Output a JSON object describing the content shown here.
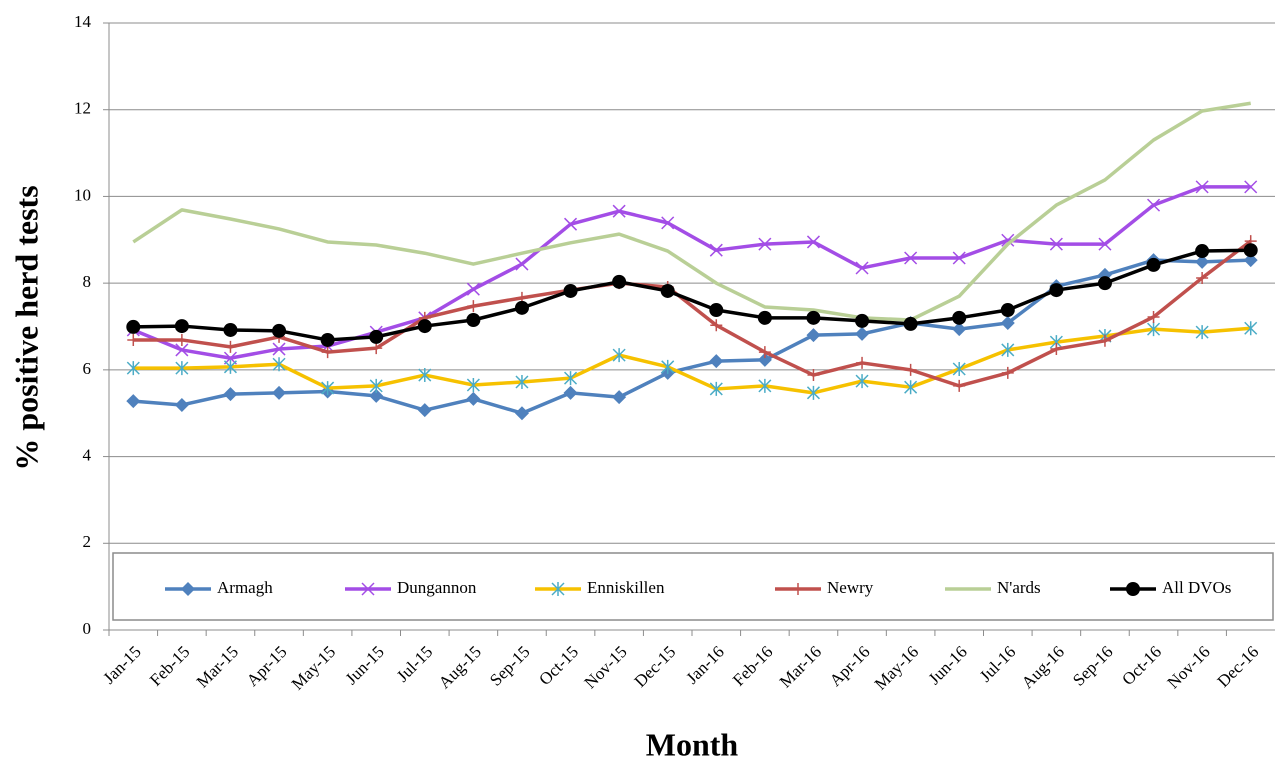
{
  "chart_data": {
    "type": "line",
    "xlabel": "Month",
    "ylabel": "% positive herd tests",
    "categories": [
      "Jan-15",
      "Feb-15",
      "Mar-15",
      "Apr-15",
      "May-15",
      "Jun-15",
      "Jul-15",
      "Aug-15",
      "Sep-15",
      "Oct-15",
      "Nov-15",
      "Dec-15",
      "Jan-16",
      "Feb-16",
      "Mar-16",
      "Apr-16",
      "May-16",
      "Jun-16",
      "Jul-16",
      "Aug-16",
      "Sep-16",
      "Oct-16",
      "Nov-16",
      "Dec-16"
    ],
    "ylim": [
      0,
      14
    ],
    "yticks": [
      0,
      2,
      4,
      6,
      8,
      10,
      12,
      14
    ],
    "grid": true,
    "legend": "bottom",
    "series": [
      {
        "name": "Armagh",
        "color": "#4f81bd",
        "marker": "diamond",
        "values": [
          5.28,
          5.19,
          5.44,
          5.47,
          5.5,
          5.4,
          5.07,
          5.33,
          5.0,
          5.47,
          5.37,
          5.93,
          6.2,
          6.23,
          6.8,
          6.83,
          7.08,
          6.94,
          7.08,
          7.93,
          8.19,
          8.53,
          8.49,
          8.53
        ]
      },
      {
        "name": "Dungannon",
        "color": "#a34de6",
        "marker": "x",
        "values": [
          6.92,
          6.46,
          6.27,
          6.48,
          6.55,
          6.87,
          7.2,
          7.86,
          8.44,
          9.36,
          9.66,
          9.39,
          8.76,
          8.9,
          8.95,
          8.35,
          8.58,
          8.58,
          8.99,
          8.9,
          8.9,
          9.8,
          10.22,
          10.22
        ]
      },
      {
        "name": "Enniskillen",
        "color": "#f6c100",
        "marker": "star",
        "values": [
          6.04,
          6.04,
          6.07,
          6.13,
          5.58,
          5.63,
          5.88,
          5.65,
          5.72,
          5.81,
          6.34,
          6.07,
          5.56,
          5.63,
          5.47,
          5.74,
          5.6,
          6.02,
          6.46,
          6.64,
          6.78,
          6.94,
          6.87,
          6.96
        ]
      },
      {
        "name": "Newry",
        "color": "#c0504d",
        "marker": "plus",
        "values": [
          6.69,
          6.69,
          6.53,
          6.76,
          6.41,
          6.5,
          7.2,
          7.47,
          7.66,
          7.84,
          8.0,
          7.91,
          7.03,
          6.41,
          5.88,
          6.16,
          6.0,
          5.63,
          5.93,
          6.48,
          6.67,
          7.22,
          8.12,
          8.97
        ]
      },
      {
        "name": "N'ards",
        "color": "#b9cf96",
        "marker": "none",
        "values": [
          8.95,
          9.69,
          9.48,
          9.25,
          8.95,
          8.88,
          8.69,
          8.44,
          8.69,
          8.93,
          9.13,
          8.74,
          8.0,
          7.45,
          7.38,
          7.2,
          7.15,
          7.7,
          8.9,
          9.8,
          10.38,
          11.3,
          11.97,
          12.15
        ]
      },
      {
        "name": "All DVOs",
        "color": "#000000",
        "marker": "circle",
        "values": [
          6.99,
          7.01,
          6.92,
          6.9,
          6.69,
          6.76,
          7.01,
          7.15,
          7.43,
          7.82,
          8.03,
          7.82,
          7.38,
          7.2,
          7.2,
          7.13,
          7.06,
          7.2,
          7.38,
          7.84,
          8.0,
          8.42,
          8.74,
          8.76
        ]
      }
    ]
  }
}
